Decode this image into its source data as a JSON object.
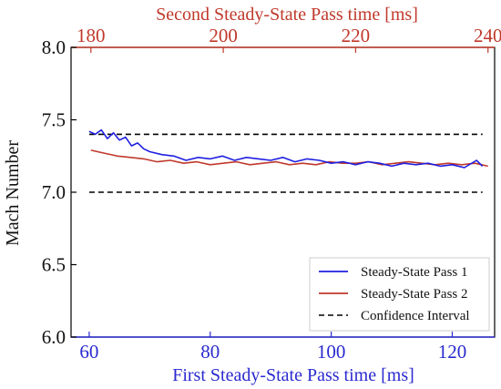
{
  "chart_data": {
    "type": "line",
    "xlabel": "First Steady-State Pass time [ms]",
    "x2label": "Second Steady-State Pass time [ms]",
    "ylabel": "Mach Number",
    "xlim": [
      57,
      127
    ],
    "x2lim": [
      177,
      241
    ],
    "ylim": [
      6.0,
      8.0
    ],
    "xticks": [
      "60",
      "80",
      "100",
      "120"
    ],
    "x2ticks": [
      "180",
      "200",
      "220",
      "240"
    ],
    "yticks": [
      "6.0",
      "6.5",
      "7.0",
      "7.5",
      "8.0"
    ],
    "grid": false,
    "legend_position": "bottom-right",
    "series": [
      {
        "name": "Steady-State Pass 1",
        "color": "#1f1fe0",
        "axis": "bottom",
        "x": [
          60,
          61,
          62,
          63,
          64,
          65,
          66,
          67,
          68,
          69,
          70,
          72,
          74,
          76,
          78,
          80,
          82,
          84,
          86,
          88,
          90,
          92,
          94,
          96,
          98,
          100,
          102,
          104,
          106,
          108,
          110,
          112,
          114,
          116,
          118,
          120,
          122,
          124,
          125
        ],
        "y": [
          7.42,
          7.4,
          7.43,
          7.37,
          7.41,
          7.36,
          7.38,
          7.32,
          7.34,
          7.3,
          7.28,
          7.26,
          7.25,
          7.22,
          7.24,
          7.23,
          7.25,
          7.22,
          7.24,
          7.23,
          7.22,
          7.24,
          7.21,
          7.23,
          7.22,
          7.2,
          7.21,
          7.19,
          7.21,
          7.2,
          7.18,
          7.2,
          7.19,
          7.2,
          7.18,
          7.19,
          7.17,
          7.22,
          7.18
        ]
      },
      {
        "name": "Steady-State Pass 2",
        "color": "#c0392b",
        "axis": "top",
        "x": [
          180,
          182,
          184,
          186,
          188,
          190,
          192,
          194,
          196,
          198,
          200,
          202,
          204,
          206,
          208,
          210,
          212,
          214,
          216,
          218,
          220,
          222,
          224,
          226,
          228,
          230,
          232,
          234,
          236,
          238,
          240
        ],
        "y": [
          7.29,
          7.27,
          7.25,
          7.24,
          7.23,
          7.21,
          7.22,
          7.2,
          7.21,
          7.19,
          7.2,
          7.21,
          7.19,
          7.2,
          7.21,
          7.19,
          7.2,
          7.19,
          7.21,
          7.2,
          7.2,
          7.21,
          7.19,
          7.2,
          7.21,
          7.2,
          7.19,
          7.2,
          7.19,
          7.2,
          7.18
        ]
      },
      {
        "name": "Confidence Interval",
        "color": "#000000",
        "axis": "bottom",
        "x": [
          60,
          125
        ],
        "upper": 7.4,
        "lower": 7.0
      }
    ]
  }
}
